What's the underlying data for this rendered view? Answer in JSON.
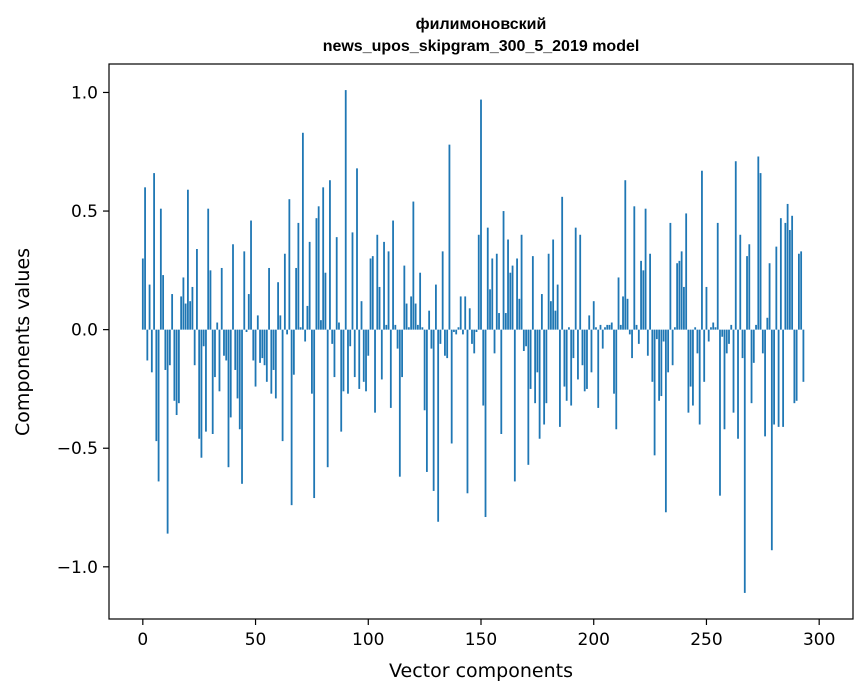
{
  "chart_data": {
    "type": "bar",
    "title_line1": "филимоновский",
    "title_line2": "news_upos_skipgram_300_5_2019 model",
    "xlabel": "Vector components",
    "ylabel": "Components values",
    "xlim": [
      -15,
      315
    ],
    "ylim": [
      -1.22,
      1.12
    ],
    "xticks": [
      0,
      50,
      100,
      150,
      200,
      250,
      300
    ],
    "xtick_labels": [
      "0",
      "50",
      "100",
      "150",
      "200",
      "250",
      "300"
    ],
    "yticks": [
      -1.0,
      -0.5,
      0.0,
      0.5,
      1.0
    ],
    "ytick_labels": [
      "−1.0",
      "−0.5",
      "0.0",
      "0.5",
      "1.0"
    ],
    "grid": false,
    "bar_color": "#1f77b4",
    "values": [
      0.3,
      0.6,
      -0.13,
      0.19,
      -0.18,
      0.66,
      -0.47,
      -0.64,
      0.51,
      0.23,
      -0.17,
      -0.86,
      -0.15,
      0.15,
      -0.3,
      -0.36,
      -0.31,
      0.14,
      0.22,
      0.11,
      0.59,
      0.12,
      0.18,
      -0.15,
      0.34,
      -0.46,
      -0.54,
      -0.07,
      -0.43,
      0.51,
      0.25,
      -0.44,
      -0.2,
      0.03,
      -0.26,
      0.26,
      -0.11,
      -0.13,
      -0.58,
      -0.37,
      0.36,
      -0.17,
      -0.29,
      -0.42,
      -0.65,
      0.33,
      -0.01,
      0.15,
      0.46,
      -0.13,
      -0.24,
      0.06,
      -0.14,
      -0.12,
      -0.15,
      -0.22,
      0.26,
      -0.27,
      -0.17,
      -0.29,
      0.2,
      0.06,
      -0.47,
      0.32,
      -0.02,
      0.55,
      -0.74,
      -0.19,
      0.26,
      0.45,
      0.01,
      0.83,
      -0.05,
      0.1,
      0.37,
      -0.27,
      -0.71,
      0.47,
      0.52,
      0.04,
      0.6,
      0.24,
      -0.58,
      0.63,
      -0.06,
      -0.2,
      0.39,
      0.03,
      -0.43,
      -0.26,
      1.01,
      -0.27,
      -0.07,
      0.41,
      -0.2,
      0.68,
      -0.25,
      0.12,
      -0.22,
      -0.26,
      -0.11,
      0.3,
      0.31,
      -0.35,
      0.4,
      0.18,
      -0.21,
      0.37,
      0.02,
      0.33,
      -0.33,
      0.46,
      0.02,
      -0.08,
      -0.62,
      -0.2,
      0.27,
      0.11,
      0.01,
      0.14,
      0.54,
      0.11,
      0.02,
      0.24,
      0.01,
      -0.34,
      -0.6,
      0.08,
      -0.08,
      -0.68,
      0.19,
      -0.81,
      -0.06,
      0.33,
      -0.11,
      -0.12,
      0.78,
      -0.48,
      -0.01,
      -0.02,
      0.01,
      0.14,
      -0.02,
      0.14,
      -0.69,
      0.09,
      -0.06,
      -0.1,
      -0.01,
      0.4,
      0.97,
      -0.32,
      -0.79,
      0.43,
      0.17,
      0.3,
      -0.1,
      0.32,
      0.07,
      -0.44,
      0.5,
      0.07,
      0.38,
      0.24,
      0.27,
      -0.64,
      0.3,
      0.13,
      0.4,
      -0.09,
      -0.07,
      -0.57,
      -0.25,
      0.31,
      -0.31,
      -0.18,
      -0.46,
      0.15,
      -0.4,
      -0.31,
      0.32,
      0.12,
      0.38,
      0.08,
      0.19,
      -0.41,
      0.56,
      -0.24,
      -0.3,
      0.01,
      -0.32,
      -0.12,
      0.43,
      -0.21,
      0.4,
      -0.15,
      -0.26,
      -0.25,
      0.06,
      -0.18,
      0.12,
      0.01,
      -0.33,
      0.02,
      -0.08,
      0.01,
      0.02,
      0.02,
      0.03,
      -0.27,
      -0.42,
      0.22,
      0.02,
      0.14,
      0.63,
      0.13,
      -0.02,
      -0.12,
      0.52,
      0.02,
      -0.06,
      0.29,
      0.25,
      0.51,
      -0.11,
      0.32,
      -0.22,
      -0.53,
      -0.04,
      -0.3,
      -0.28,
      -0.05,
      -0.77,
      -0.18,
      0.45,
      -0.15,
      0.01,
      0.28,
      0.29,
      0.33,
      0.18,
      0.49,
      -0.35,
      -0.24,
      -0.32,
      0.01,
      -0.1,
      -0.4,
      0.67,
      -0.22,
      0.18,
      -0.05,
      0.01,
      0.03,
      0.01,
      0.45,
      -0.7,
      -0.03,
      -0.42,
      -0.1,
      -0.06,
      0.02,
      -0.35,
      0.71,
      -0.46,
      0.4,
      -0.12,
      -1.11,
      0.31,
      0.36,
      -0.31,
      -0.14,
      0.02,
      0.73,
      0.66,
      -0.1,
      -0.45,
      0.05,
      0.28,
      -0.93,
      -0.4,
      0.35,
      -0.41,
      0.47,
      -0.41,
      0.45,
      0.53,
      0.42,
      0.48,
      -0.31,
      -0.3,
      0.32,
      0.33,
      -0.22
    ]
  }
}
